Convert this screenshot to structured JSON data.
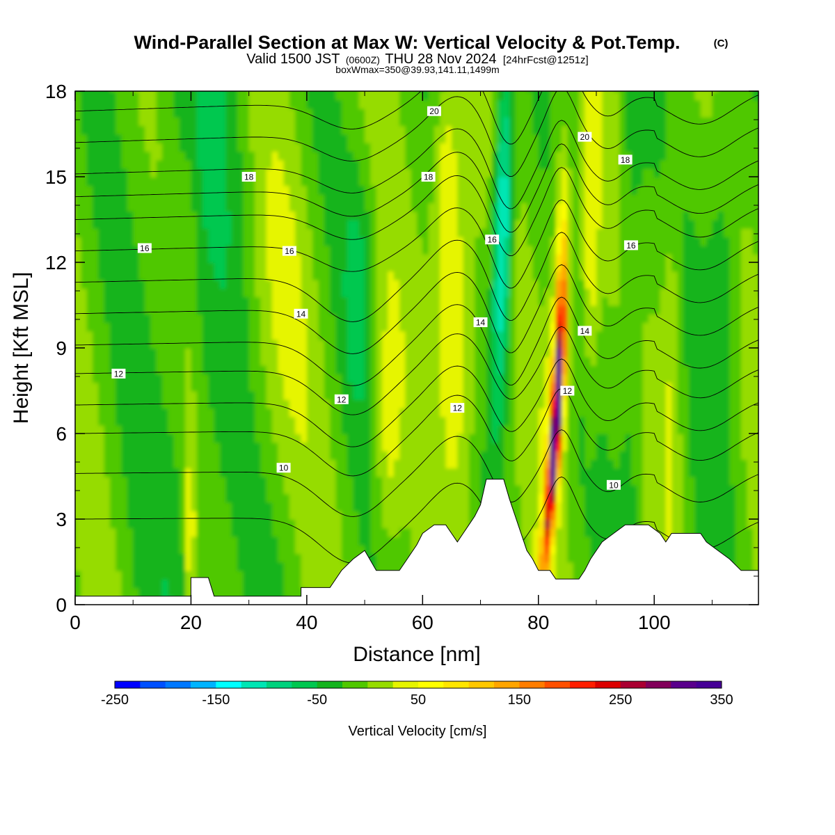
{
  "chart_data": {
    "type": "heatmap",
    "title": "Wind-Parallel Section at Max W: Vertical Velocity & Pot.Temp.",
    "title_mark": "(C)",
    "subtitle_parts": [
      "Valid 1500 JST",
      "(0600Z)",
      "THU 28 Nov 2024",
      "[24hrFcst@1251z]"
    ],
    "subtitle2": "boxWmax=350@39.93,141.11,1499m",
    "xlabel": "Distance [nm]",
    "ylabel": "Height [Kft MSL]",
    "xlim": [
      0,
      118
    ],
    "ylim": [
      0,
      18
    ],
    "x_ticks": [
      "0",
      "20",
      "40",
      "60",
      "80",
      "100"
    ],
    "y_ticks": [
      "0",
      "3",
      "6",
      "9",
      "12",
      "15",
      "18"
    ],
    "colorbar": {
      "label": "Vertical Velocity [cm/s]",
      "min": -250,
      "max": 350,
      "step": 25,
      "tick_labels": [
        "-250",
        "-150",
        "-50",
        "50",
        "150",
        "250",
        "350"
      ],
      "colors": [
        "#0000ff",
        "#0050ff",
        "#0078ff",
        "#00b4ff",
        "#00ffff",
        "#00e6b4",
        "#00d27d",
        "#00c850",
        "#14b41e",
        "#50c800",
        "#96dc00",
        "#e6f500",
        "#ffff00",
        "#ffe600",
        "#ffc800",
        "#ffa500",
        "#ff7d00",
        "#ff5000",
        "#ff1e00",
        "#dc0000",
        "#aa0032",
        "#82005a",
        "#5a008c",
        "#460096"
      ]
    },
    "field_features": [
      {
        "name": "updraft core",
        "x": 83.5,
        "w_max": 350
      },
      {
        "name": "downdraft band",
        "x": 74,
        "w_min": -175
      },
      {
        "name": "updraft band",
        "x": 66,
        "w": 120
      }
    ],
    "theta_contour_labels": [
      {
        "text": "10",
        "x": 36,
        "y": 4.8
      },
      {
        "text": "10",
        "x": 93,
        "y": 4.2
      },
      {
        "text": "12",
        "x": 7.5,
        "y": 8.1
      },
      {
        "text": "12",
        "x": 46,
        "y": 7.2
      },
      {
        "text": "12",
        "x": 66,
        "y": 6.9
      },
      {
        "text": "12",
        "x": 85,
        "y": 7.5
      },
      {
        "text": "14",
        "x": 39,
        "y": 10.2
      },
      {
        "text": "14",
        "x": 70,
        "y": 9.9
      },
      {
        "text": "14",
        "x": 88,
        "y": 9.6
      },
      {
        "text": "16",
        "x": 12,
        "y": 12.5
      },
      {
        "text": "16",
        "x": 37,
        "y": 12.4
      },
      {
        "text": "16",
        "x": 72,
        "y": 12.8
      },
      {
        "text": "16",
        "x": 96,
        "y": 12.6
      },
      {
        "text": "18",
        "x": 30,
        "y": 15.0
      },
      {
        "text": "18",
        "x": 61,
        "y": 15.0
      },
      {
        "text": "18",
        "x": 95,
        "y": 15.6
      },
      {
        "text": "20",
        "x": 62,
        "y": 17.3
      },
      {
        "text": "20",
        "x": 88,
        "y": 16.4
      }
    ],
    "terrain": [
      [
        0,
        0.3
      ],
      [
        20,
        0.3
      ],
      [
        20,
        0.95
      ],
      [
        23,
        0.95
      ],
      [
        24,
        0.3
      ],
      [
        39,
        0.3
      ],
      [
        39,
        0.6
      ],
      [
        44,
        0.6
      ],
      [
        46,
        1.2
      ],
      [
        48,
        1.6
      ],
      [
        50,
        1.9
      ],
      [
        52,
        1.2
      ],
      [
        56,
        1.2
      ],
      [
        57,
        1.5
      ],
      [
        59,
        2.1
      ],
      [
        60,
        2.5
      ],
      [
        62,
        2.8
      ],
      [
        64,
        2.8
      ],
      [
        65,
        2.5
      ],
      [
        66,
        2.2
      ],
      [
        67,
        2.5
      ],
      [
        68,
        2.8
      ],
      [
        69,
        3.1
      ],
      [
        70,
        3.5
      ],
      [
        71,
        4.4
      ],
      [
        74,
        4.4
      ],
      [
        75,
        3.7
      ],
      [
        76,
        3.1
      ],
      [
        77,
        2.5
      ],
      [
        78,
        1.9
      ],
      [
        79,
        1.6
      ],
      [
        80,
        1.2
      ],
      [
        82,
        1.2
      ],
      [
        83,
        0.9
      ],
      [
        87,
        0.9
      ],
      [
        88,
        1.2
      ],
      [
        89,
        1.6
      ],
      [
        90,
        1.9
      ],
      [
        91,
        2.2
      ],
      [
        93,
        2.5
      ],
      [
        95,
        2.8
      ],
      [
        99,
        2.8
      ],
      [
        101,
        2.5
      ],
      [
        102,
        2.2
      ],
      [
        103,
        2.5
      ],
      [
        108,
        2.5
      ],
      [
        109,
        2.2
      ],
      [
        111,
        1.9
      ],
      [
        113,
        1.6
      ],
      [
        115,
        1.2
      ],
      [
        118,
        1.2
      ],
      [
        118,
        0
      ]
    ]
  }
}
